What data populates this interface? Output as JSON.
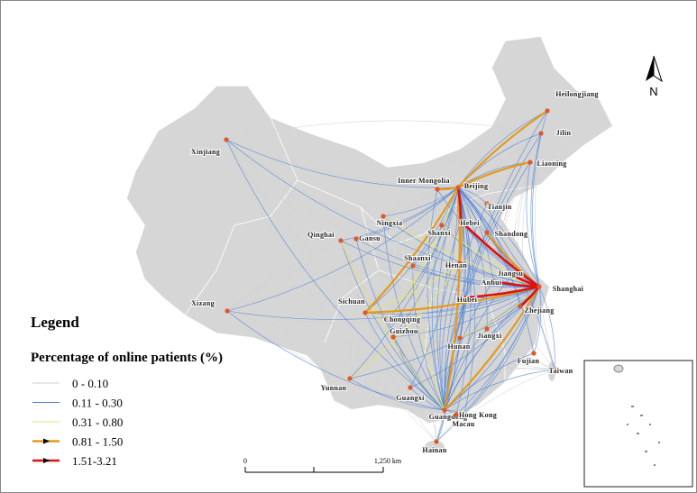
{
  "places": [
    {
      "name": "Heilongjiang"
    },
    {
      "name": "Jilin"
    },
    {
      "name": "Liaoning"
    },
    {
      "name": "Xinjiang"
    },
    {
      "name": "Inner Mongolia"
    },
    {
      "name": "Beijing"
    },
    {
      "name": "Tianjin"
    },
    {
      "name": "Hebei"
    },
    {
      "name": "Ningxia"
    },
    {
      "name": "Qinghai"
    },
    {
      "name": "Gansu"
    },
    {
      "name": "Shanxi"
    },
    {
      "name": "Shandong"
    },
    {
      "name": "Shaanxi"
    },
    {
      "name": "Henan"
    },
    {
      "name": "Jiangsu"
    },
    {
      "name": "Anhui"
    },
    {
      "name": "Shanghai"
    },
    {
      "name": "Xizang"
    },
    {
      "name": "Sichuan"
    },
    {
      "name": "Hubei"
    },
    {
      "name": "Chongqing"
    },
    {
      "name": "Zhejiang"
    },
    {
      "name": "Jiangxi"
    },
    {
      "name": "Hunan"
    },
    {
      "name": "Guizhou"
    },
    {
      "name": "Fujian"
    },
    {
      "name": "Taiwan"
    },
    {
      "name": "Yunnan"
    },
    {
      "name": "Guangxi"
    },
    {
      "name": "Guangdong"
    },
    {
      "name": "Hong Kong"
    },
    {
      "name": "Macau"
    },
    {
      "name": "Hainan"
    }
  ],
  "legend": {
    "title": "Legend",
    "subtitle": "Percentage of online patients (%)",
    "classes": [
      {
        "label": "0 - 0.10",
        "color": "#cfcfcf"
      },
      {
        "label": "0.11 - 0.30",
        "color": "#4a7fd6"
      },
      {
        "label": "0.31 - 0.80",
        "color": "#e3e07a"
      },
      {
        "label": "0.81 - 1.50",
        "color": "#e49a1f"
      },
      {
        "label": "1.51-3.21",
        "color": "#e01010"
      }
    ]
  },
  "scale_bar": {
    "labels": [
      "0",
      "1,250 km"
    ]
  },
  "north_arrow": "N"
}
